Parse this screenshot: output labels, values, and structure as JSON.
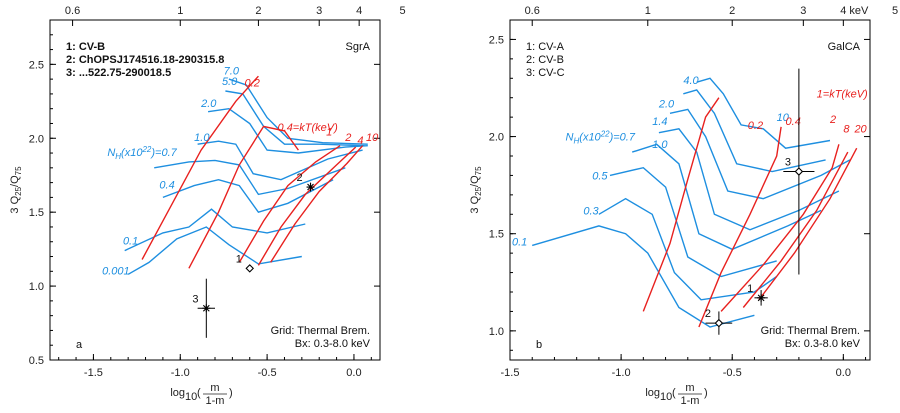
{
  "colors": {
    "nh_grid": "#1e8fe0",
    "kt_grid": "#e8211f",
    "frame": "#000000",
    "points": "#000000"
  },
  "chart_data": [
    {
      "type": "scatter",
      "panel_label": "a",
      "title": "SgrA",
      "xlabel": "log10(m/(1-m))",
      "ylabel": "3 Q25/Q75",
      "xlabel_main": "log",
      "xlabel_sub": "10",
      "xlabel_num": "m",
      "xlabel_den": "1-m",
      "ylabel_main": "3 Q",
      "ylabel_sub1": "25",
      "ylabel_sep": "/Q",
      "ylabel_sub2": "75",
      "xlim": [
        -1.75,
        0.15
      ],
      "ylim": [
        0.5,
        2.8
      ],
      "x_ticks": [
        -1.5,
        -1.0,
        -0.5,
        0.0
      ],
      "x_tick_labels": [
        "-1.5",
        "-1.0",
        "-0.5",
        "0.0"
      ],
      "y_ticks": [
        0.5,
        1.0,
        1.5,
        2.0,
        2.5
      ],
      "y_tick_labels": [
        "0.5",
        "1.0",
        "1.5",
        "2.0",
        "2.5"
      ],
      "top_axis_label": "",
      "top_ticks": [
        {
          "x": -1.62,
          "label": "0.6"
        },
        {
          "x": -1.0,
          "label": "1"
        },
        {
          "x": -0.55,
          "label": "2"
        },
        {
          "x": -0.2,
          "label": "3"
        },
        {
          "x": 0.03,
          "label": "4"
        },
        {
          "x": 0.28,
          "label": "5"
        }
      ],
      "legend": [
        "1: CV-B",
        "2: ChOPSJ174516.18-290315.8",
        "3: ...522.75-290018.5"
      ],
      "legend_bold": true,
      "grid_note": [
        "Grid: Thermal Brem.",
        "Bx: 0.3-8.0 keV"
      ],
      "nh_labels": [
        {
          "text": "0.001",
          "x": -1.45,
          "y": 1.08
        },
        {
          "text": "0.1",
          "x": -1.33,
          "y": 1.28
        },
        {
          "text": "0.4",
          "x": -1.12,
          "y": 1.66
        },
        {
          "text": "N_H(x10^22)=0.7",
          "x": -1.42,
          "y": 1.88
        },
        {
          "text": "1.0",
          "x": -0.92,
          "y": 1.98
        },
        {
          "text": "2.0",
          "x": -0.88,
          "y": 2.21
        },
        {
          "text": "5.0",
          "x": -0.76,
          "y": 2.36
        },
        {
          "text": "7.0",
          "x": -0.75,
          "y": 2.43
        }
      ],
      "kt_labels": [
        {
          "text": "0.2",
          "x": -0.63,
          "y": 2.35
        },
        {
          "text": "0.4=kT(keV)",
          "x": -0.44,
          "y": 2.05
        },
        {
          "text": "1",
          "x": -0.16,
          "y": 2.02
        },
        {
          "text": "2",
          "x": -0.05,
          "y": 1.98
        },
        {
          "text": "4",
          "x": 0.02,
          "y": 1.96
        },
        {
          "text": "10",
          "x": 0.07,
          "y": 1.98
        }
      ],
      "grid_kt_curves": [
        [
          [
            -1.22,
            1.18
          ],
          [
            -1.05,
            1.55
          ],
          [
            -0.88,
            1.92
          ],
          [
            -0.68,
            2.25
          ],
          [
            -0.55,
            2.42
          ]
        ],
        [
          [
            -0.95,
            1.12
          ],
          [
            -0.78,
            1.5
          ],
          [
            -0.66,
            1.82
          ],
          [
            -0.52,
            2.08
          ],
          [
            -0.4,
            2.05
          ],
          [
            -0.32,
            1.92
          ]
        ],
        [
          [
            -0.66,
            1.16
          ],
          [
            -0.52,
            1.44
          ],
          [
            -0.38,
            1.68
          ],
          [
            -0.22,
            1.84
          ],
          [
            -0.08,
            1.95
          ]
        ],
        [
          [
            -0.55,
            1.14
          ],
          [
            -0.42,
            1.4
          ],
          [
            -0.28,
            1.62
          ],
          [
            -0.1,
            1.82
          ],
          [
            0.01,
            1.94
          ]
        ],
        [
          [
            -0.48,
            1.16
          ],
          [
            -0.34,
            1.42
          ],
          [
            -0.2,
            1.64
          ],
          [
            -0.04,
            1.83
          ],
          [
            0.05,
            1.95
          ]
        ]
      ],
      "grid_nh_curves": [
        [
          [
            -1.3,
            1.08
          ],
          [
            -1.18,
            1.16
          ],
          [
            -1.02,
            1.32
          ],
          [
            -0.85,
            1.4
          ],
          [
            -0.72,
            1.28
          ],
          [
            -0.55,
            1.15
          ],
          [
            -0.3,
            1.2
          ]
        ],
        [
          [
            -1.32,
            1.24
          ],
          [
            -1.1,
            1.36
          ],
          [
            -0.95,
            1.4
          ],
          [
            -0.82,
            1.52
          ],
          [
            -0.7,
            1.4
          ],
          [
            -0.5,
            1.36
          ],
          [
            -0.28,
            1.42
          ]
        ],
        [
          [
            -1.1,
            1.6
          ],
          [
            -0.92,
            1.68
          ],
          [
            -0.78,
            1.72
          ],
          [
            -0.66,
            1.68
          ],
          [
            -0.55,
            1.5
          ],
          [
            -0.38,
            1.56
          ],
          [
            -0.12,
            1.72
          ]
        ],
        [
          [
            -1.15,
            1.8
          ],
          [
            -0.95,
            1.84
          ],
          [
            -0.8,
            1.85
          ],
          [
            -0.66,
            1.82
          ],
          [
            -0.55,
            1.62
          ],
          [
            -0.38,
            1.66
          ],
          [
            -0.05,
            1.8
          ]
        ],
        [
          [
            -0.9,
            1.96
          ],
          [
            -0.78,
            1.98
          ],
          [
            -0.68,
            1.96
          ],
          [
            -0.58,
            1.76
          ],
          [
            -0.42,
            1.72
          ],
          [
            -0.15,
            1.86
          ],
          [
            0.05,
            1.92
          ]
        ],
        [
          [
            -0.84,
            2.18
          ],
          [
            -0.72,
            2.2
          ],
          [
            -0.6,
            2.1
          ],
          [
            -0.5,
            1.92
          ],
          [
            -0.32,
            1.9
          ],
          [
            -0.05,
            1.94
          ],
          [
            0.08,
            1.95
          ]
        ],
        [
          [
            -0.74,
            2.32
          ],
          [
            -0.64,
            2.3
          ],
          [
            -0.52,
            2.08
          ],
          [
            -0.4,
            1.96
          ],
          [
            -0.2,
            1.96
          ],
          [
            0.06,
            1.95
          ]
        ],
        [
          [
            -0.72,
            2.4
          ],
          [
            -0.62,
            2.36
          ],
          [
            -0.5,
            2.14
          ],
          [
            -0.38,
            2.0
          ],
          [
            -0.18,
            1.97
          ],
          [
            0.08,
            1.96
          ]
        ]
      ],
      "points": [
        {
          "label": "1",
          "marker": "diamond",
          "x": -0.6,
          "y": 1.12,
          "xerr": 0.02,
          "yerr": 0.0
        },
        {
          "label": "2",
          "marker": "star",
          "x": -0.25,
          "y": 1.67,
          "xerr": 0.02,
          "yerr": 0.03
        },
        {
          "label": "3",
          "marker": "star",
          "x": -0.85,
          "y": 0.85,
          "xerr": 0.05,
          "yerr": 0.2
        }
      ]
    },
    {
      "type": "scatter",
      "panel_label": "b",
      "title": "GalCA",
      "xlabel": "log10(m/(1-m))",
      "ylabel": "3 Q25/Q75",
      "xlabel_main": "log",
      "xlabel_sub": "10",
      "xlabel_num": "m",
      "xlabel_den": "1-m",
      "ylabel_main": "3 Q",
      "ylabel_sub1": "25",
      "ylabel_sep": "/Q",
      "ylabel_sub2": "75",
      "xlim": [
        -1.5,
        0.12
      ],
      "ylim": [
        0.85,
        2.6
      ],
      "x_ticks": [
        -1.5,
        -1.0,
        -0.5,
        0.0
      ],
      "x_tick_labels": [
        "-1.5",
        "-1.0",
        "-0.5",
        "0.0"
      ],
      "y_ticks": [
        1.0,
        1.5,
        2.0,
        2.5
      ],
      "y_tick_labels": [
        "1.0",
        "1.5",
        "2.0",
        "2.5"
      ],
      "top_axis_label": "keV",
      "top_ticks": [
        {
          "x": -1.4,
          "label": "0.6"
        },
        {
          "x": -0.88,
          "label": "1"
        },
        {
          "x": -0.5,
          "label": "2"
        },
        {
          "x": -0.18,
          "label": "3"
        },
        {
          "x": 0.0,
          "label": "4"
        },
        {
          "x": 0.26,
          "label": "5"
        }
      ],
      "legend": [
        "1: CV-A",
        "2: CV-B",
        "3: CV-C"
      ],
      "legend_bold": false,
      "grid_note": [
        "Grid: Thermal Brem.",
        "Bx: 0.3-8.0 keV"
      ],
      "nh_labels": [
        {
          "text": "0.1",
          "x": -1.5,
          "y": 1.44
        },
        {
          "text": "0.3",
          "x": -1.17,
          "y": 1.6
        },
        {
          "text": "0.5",
          "x": -1.13,
          "y": 1.78
        },
        {
          "text": "N_H(x10^22)=0.7",
          "x": -1.25,
          "y": 1.98
        },
        {
          "text": "1.0",
          "x": -0.86,
          "y": 1.94
        },
        {
          "text": "1.4",
          "x": -0.86,
          "y": 2.06
        },
        {
          "text": "2.0",
          "x": -0.83,
          "y": 2.15
        },
        {
          "text": "4.0",
          "x": -0.72,
          "y": 2.27
        },
        {
          "text": "10",
          "x": -0.3,
          "y": 2.08
        }
      ],
      "kt_labels": [
        {
          "text": "0.4",
          "x": -0.26,
          "y": 2.06
        },
        {
          "text": "0.2",
          "x": -0.43,
          "y": 2.04
        },
        {
          "text": "1=kT(keV)",
          "x": -0.12,
          "y": 2.2
        },
        {
          "text": "2",
          "x": -0.06,
          "y": 2.07
        },
        {
          "text": "8",
          "x": 0.0,
          "y": 2.02
        },
        {
          "text": "20",
          "x": 0.05,
          "y": 2.02
        }
      ],
      "grid_kt_curves": [
        [
          [
            -0.9,
            1.1
          ],
          [
            -0.78,
            1.45
          ],
          [
            -0.7,
            1.78
          ],
          [
            -0.62,
            2.1
          ],
          [
            -0.56,
            2.2
          ]
        ],
        [
          [
            -0.65,
            1.02
          ],
          [
            -0.55,
            1.3
          ],
          [
            -0.42,
            1.6
          ],
          [
            -0.3,
            1.9
          ],
          [
            -0.28,
            2.05
          ]
        ],
        [
          [
            -0.55,
            1.1
          ],
          [
            -0.36,
            1.34
          ],
          [
            -0.18,
            1.6
          ],
          [
            -0.05,
            1.84
          ],
          [
            -0.02,
            1.96
          ]
        ],
        [
          [
            -0.45,
            1.12
          ],
          [
            -0.28,
            1.36
          ],
          [
            -0.12,
            1.62
          ],
          [
            0.02,
            1.92
          ]
        ],
        [
          [
            -0.38,
            1.16
          ],
          [
            -0.22,
            1.4
          ],
          [
            -0.06,
            1.68
          ],
          [
            0.06,
            1.94
          ]
        ]
      ],
      "grid_nh_curves": [
        [
          [
            -1.4,
            1.44
          ],
          [
            -1.1,
            1.54
          ],
          [
            -0.98,
            1.5
          ],
          [
            -0.88,
            1.4
          ],
          [
            -0.74,
            1.12
          ],
          [
            -0.6,
            1.02
          ],
          [
            -0.4,
            1.08
          ]
        ],
        [
          [
            -1.1,
            1.6
          ],
          [
            -0.98,
            1.68
          ],
          [
            -0.86,
            1.6
          ],
          [
            -0.76,
            1.3
          ],
          [
            -0.64,
            1.16
          ],
          [
            -0.4,
            1.2
          ],
          [
            -0.3,
            1.28
          ]
        ],
        [
          [
            -1.05,
            1.8
          ],
          [
            -0.9,
            1.84
          ],
          [
            -0.8,
            1.74
          ],
          [
            -0.7,
            1.38
          ],
          [
            -0.55,
            1.28
          ],
          [
            -0.3,
            1.36
          ]
        ],
        [
          [
            -0.95,
            1.92
          ],
          [
            -0.84,
            1.96
          ],
          [
            -0.74,
            1.86
          ],
          [
            -0.65,
            1.5
          ],
          [
            -0.5,
            1.42
          ],
          [
            -0.25,
            1.54
          ],
          [
            -0.1,
            1.62
          ]
        ],
        [
          [
            -0.83,
            2.02
          ],
          [
            -0.74,
            2.04
          ],
          [
            -0.66,
            1.92
          ],
          [
            -0.58,
            1.6
          ],
          [
            -0.42,
            1.52
          ],
          [
            -0.2,
            1.62
          ],
          [
            -0.02,
            1.72
          ]
        ],
        [
          [
            -0.78,
            2.12
          ],
          [
            -0.7,
            2.14
          ],
          [
            -0.62,
            2.0
          ],
          [
            -0.52,
            1.72
          ],
          [
            -0.36,
            1.68
          ],
          [
            -0.1,
            1.8
          ],
          [
            0.03,
            1.88
          ]
        ],
        [
          [
            -0.72,
            2.22
          ],
          [
            -0.66,
            2.24
          ],
          [
            -0.58,
            2.12
          ],
          [
            -0.48,
            1.86
          ],
          [
            -0.32,
            1.82
          ],
          [
            -0.08,
            1.88
          ]
        ],
        [
          [
            -0.66,
            2.28
          ],
          [
            -0.6,
            2.3
          ],
          [
            -0.54,
            2.22
          ],
          [
            -0.46,
            2.06
          ],
          [
            -0.36,
            2.04
          ],
          [
            -0.26,
            1.94
          ],
          [
            -0.06,
            1.98
          ]
        ]
      ],
      "points": [
        {
          "label": "1",
          "marker": "star",
          "x": -0.37,
          "y": 1.17,
          "xerr": 0.03,
          "yerr": 0.04
        },
        {
          "label": "2",
          "marker": "diamond",
          "x": -0.56,
          "y": 1.04,
          "xerr": 0.06,
          "yerr": 0.06
        },
        {
          "label": "3",
          "marker": "diamond",
          "x": -0.2,
          "y": 1.82,
          "xerr": 0.07,
          "yerr": 0.53
        }
      ]
    }
  ]
}
